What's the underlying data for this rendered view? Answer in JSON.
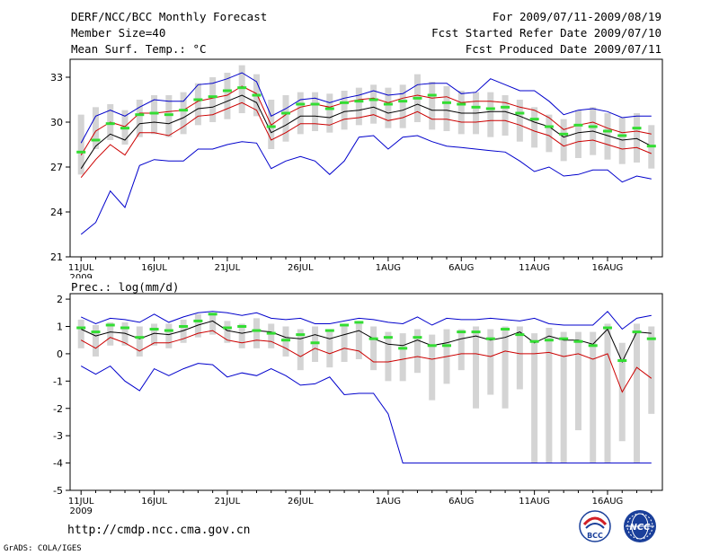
{
  "header": {
    "title": "DERF/NCC/BCC Monthly Forecast",
    "member_size": "Member Size=40",
    "variable_temp": "Mean Surf. Temp.: °C",
    "forecast_period": "For 2009/07/11-2009/08/19",
    "refer_date": "Fcst Started Refer Date 2009/07/10",
    "produced_date": "Fcst Produced Date 2009/07/11"
  },
  "footer": {
    "url": "http://cmdp.ncc.cma.gov.cn",
    "grads": "GrADS: COLA/IGES",
    "logo_bcc": "BCC",
    "logo_ncc": "NCC"
  },
  "colors": {
    "max_min": "#0000cc",
    "mean": "#000000",
    "lower": "#cc0000",
    "box": "#d4d4d4",
    "median": "#33dd33"
  },
  "chart_data": [
    {
      "type": "line",
      "title": "Mean Surf. Temp.: °C",
      "x_tick_labels": [
        "11JUL",
        "16JUL",
        "21JUL",
        "26JUL",
        "1AUG",
        "6AUG",
        "11AUG",
        "16AUG"
      ],
      "x_tick_days": [
        1,
        6,
        11,
        16,
        22,
        27,
        32,
        37
      ],
      "year_label": "2009",
      "y_ticks": [
        21,
        24,
        27,
        30,
        33
      ],
      "ylim": [
        21,
        34.2
      ],
      "days": 40,
      "series": [
        {
          "name": "max",
          "values": [
            28.6,
            30.4,
            30.8,
            30.4,
            31.0,
            31.5,
            31.4,
            31.4,
            32.5,
            32.6,
            32.9,
            33.3,
            32.7,
            30.4,
            30.9,
            31.5,
            31.6,
            31.3,
            31.6,
            31.8,
            32.1,
            31.8,
            31.9,
            32.5,
            32.6,
            32.6,
            31.9,
            32.0,
            32.9,
            32.5,
            32.1,
            32.1,
            31.4,
            30.5,
            30.8,
            30.9,
            30.7,
            30.3,
            30.4,
            30.4
          ]
        },
        {
          "name": "upper",
          "values": [
            27.8,
            29.4,
            30.0,
            29.7,
            30.6,
            30.6,
            30.7,
            30.8,
            31.4,
            31.6,
            31.8,
            32.4,
            31.9,
            29.8,
            30.5,
            31.0,
            31.2,
            31.0,
            31.3,
            31.5,
            31.6,
            31.3,
            31.6,
            31.8,
            31.6,
            31.7,
            31.3,
            31.4,
            31.4,
            31.3,
            31.0,
            30.8,
            30.3,
            29.5,
            29.8,
            30.0,
            29.6,
            29.3,
            29.4,
            29.2
          ]
        },
        {
          "name": "mean",
          "values": [
            26.9,
            28.4,
            29.2,
            28.8,
            29.9,
            30.0,
            29.9,
            30.3,
            30.9,
            31.0,
            31.4,
            31.8,
            31.3,
            29.3,
            29.8,
            30.4,
            30.4,
            30.3,
            30.7,
            30.8,
            31.0,
            30.6,
            30.8,
            31.2,
            30.8,
            30.8,
            30.6,
            30.6,
            30.7,
            30.7,
            30.4,
            30.0,
            29.7,
            29.0,
            29.3,
            29.4,
            29.1,
            28.8,
            28.9,
            28.4
          ]
        },
        {
          "name": "lower",
          "values": [
            26.3,
            27.5,
            28.5,
            27.8,
            29.3,
            29.3,
            29.1,
            29.7,
            30.4,
            30.5,
            30.9,
            31.3,
            30.8,
            28.8,
            29.3,
            29.9,
            29.9,
            29.8,
            30.2,
            30.3,
            30.5,
            30.1,
            30.3,
            30.7,
            30.2,
            30.2,
            30.0,
            30.0,
            30.1,
            30.1,
            29.8,
            29.4,
            29.1,
            28.4,
            28.7,
            28.8,
            28.5,
            28.2,
            28.3,
            27.9
          ]
        },
        {
          "name": "min",
          "values": [
            22.5,
            23.3,
            25.4,
            24.3,
            27.1,
            27.5,
            27.4,
            27.4,
            28.2,
            28.2,
            28.5,
            28.7,
            28.6,
            26.9,
            27.4,
            27.7,
            27.4,
            26.5,
            27.4,
            29.0,
            29.1,
            28.2,
            29.0,
            29.1,
            28.7,
            28.4,
            28.3,
            28.2,
            28.1,
            28.0,
            27.4,
            26.7,
            27.0,
            26.4,
            26.5,
            26.8,
            26.8,
            26.0,
            26.4,
            26.2
          ]
        }
      ],
      "boxes": [
        [
          26.5,
          30.5
        ],
        [
          28.2,
          31.0
        ],
        [
          28.8,
          31.2
        ],
        [
          28.5,
          30.8
        ],
        [
          29.0,
          31.5
        ],
        [
          29.2,
          31.8
        ],
        [
          29.0,
          31.8
        ],
        [
          29.2,
          32.0
        ],
        [
          29.8,
          32.6
        ],
        [
          30.0,
          33.0
        ],
        [
          30.2,
          33.3
        ],
        [
          30.6,
          33.8
        ],
        [
          30.4,
          33.2
        ],
        [
          28.2,
          31.5
        ],
        [
          28.7,
          31.8
        ],
        [
          29.2,
          32.0
        ],
        [
          29.4,
          32.0
        ],
        [
          29.3,
          31.9
        ],
        [
          29.5,
          32.1
        ],
        [
          29.8,
          32.3
        ],
        [
          29.9,
          32.5
        ],
        [
          29.6,
          32.3
        ],
        [
          29.6,
          32.5
        ],
        [
          30.0,
          33.2
        ],
        [
          29.5,
          32.7
        ],
        [
          29.4,
          32.4
        ],
        [
          29.2,
          32.1
        ],
        [
          29.2,
          32.0
        ],
        [
          29.0,
          32.0
        ],
        [
          29.1,
          31.8
        ],
        [
          28.7,
          31.5
        ],
        [
          28.3,
          31.0
        ],
        [
          28.0,
          30.5
        ],
        [
          27.4,
          30.2
        ],
        [
          27.6,
          30.8
        ],
        [
          27.8,
          31.0
        ],
        [
          27.5,
          30.6
        ],
        [
          27.2,
          30.3
        ],
        [
          27.3,
          30.6
        ],
        [
          26.9,
          29.8
        ]
      ],
      "medians": [
        28.0,
        28.8,
        29.9,
        29.6,
        30.5,
        30.6,
        30.5,
        30.8,
        31.5,
        31.7,
        32.1,
        32.3,
        31.8,
        29.7,
        30.6,
        31.2,
        31.2,
        30.9,
        31.3,
        31.4,
        31.5,
        31.2,
        31.4,
        31.6,
        31.8,
        31.3,
        31.2,
        31.0,
        30.9,
        31.0,
        30.6,
        30.2,
        29.7,
        29.2,
        29.8,
        29.7,
        29.4,
        29.1,
        29.6,
        28.4
      ]
    },
    {
      "type": "line",
      "title": "Prec.: log(mm/d)",
      "x_tick_labels": [
        "11JUL",
        "16JUL",
        "21JUL",
        "26JUL",
        "1AUG",
        "6AUG",
        "11AUG",
        "16AUG"
      ],
      "x_tick_days": [
        1,
        6,
        11,
        16,
        22,
        27,
        32,
        37
      ],
      "year_label": "2009",
      "y_ticks": [
        -5,
        -4,
        -3,
        -2,
        -1,
        0,
        1,
        2
      ],
      "ylim": [
        -5,
        2.2
      ],
      "days": 40,
      "series": [
        {
          "name": "max",
          "values": [
            1.35,
            1.1,
            1.3,
            1.25,
            1.15,
            1.45,
            1.15,
            1.35,
            1.5,
            1.55,
            1.5,
            1.4,
            1.5,
            1.3,
            1.25,
            1.3,
            1.1,
            1.1,
            1.2,
            1.3,
            1.25,
            1.15,
            1.1,
            1.35,
            1.05,
            1.3,
            1.25,
            1.25,
            1.3,
            1.25,
            1.2,
            1.3,
            1.1,
            1.05,
            1.05,
            1.05,
            1.55,
            0.9,
            1.3,
            1.4
          ]
        },
        {
          "name": "mean",
          "values": [
            0.9,
            0.65,
            0.8,
            0.75,
            0.55,
            0.75,
            0.7,
            0.85,
            1.05,
            1.2,
            0.85,
            0.75,
            0.85,
            0.8,
            0.6,
            0.55,
            0.7,
            0.55,
            0.7,
            0.85,
            0.55,
            0.35,
            0.3,
            0.5,
            0.3,
            0.4,
            0.55,
            0.65,
            0.5,
            0.6,
            0.8,
            0.4,
            0.65,
            0.5,
            0.5,
            0.35,
            0.9,
            -0.3,
            0.8,
            0.75
          ]
        },
        {
          "name": "lower",
          "values": [
            0.5,
            0.2,
            0.6,
            0.4,
            0.1,
            0.4,
            0.4,
            0.55,
            0.75,
            0.85,
            0.5,
            0.4,
            0.5,
            0.45,
            0.2,
            -0.1,
            0.2,
            0.0,
            0.2,
            0.1,
            -0.3,
            -0.3,
            -0.2,
            -0.1,
            -0.2,
            -0.1,
            0.0,
            0.0,
            -0.1,
            0.1,
            0.0,
            0.0,
            0.05,
            -0.1,
            0.0,
            -0.2,
            0.0,
            -1.4,
            -0.5,
            -0.9
          ]
        },
        {
          "name": "min",
          "values": [
            -0.45,
            -0.75,
            -0.45,
            -1.0,
            -1.35,
            -0.55,
            -0.8,
            -0.55,
            -0.35,
            -0.4,
            -0.85,
            -0.7,
            -0.8,
            -0.55,
            -0.8,
            -1.15,
            -1.1,
            -0.85,
            -1.5,
            -1.45,
            -1.45,
            -2.2,
            -4.0,
            -4.0,
            -4.0,
            -4.0,
            -4.0,
            -4.0,
            -4.0,
            -4.0,
            -4.0,
            -4.0,
            -4.0,
            -4.0,
            -4.0,
            -4.0,
            -4.0,
            -4.0,
            -4.0,
            -4.0
          ]
        }
      ],
      "boxes": [
        [
          0.2,
          1.25
        ],
        [
          -0.1,
          1.05
        ],
        [
          0.3,
          1.15
        ],
        [
          0.3,
          1.15
        ],
        [
          -0.1,
          1.0
        ],
        [
          0.3,
          1.1
        ],
        [
          0.2,
          1.1
        ],
        [
          0.4,
          1.25
        ],
        [
          0.6,
          1.45
        ],
        [
          0.7,
          1.5
        ],
        [
          0.4,
          1.2
        ],
        [
          0.2,
          1.1
        ],
        [
          0.2,
          1.3
        ],
        [
          0.2,
          1.1
        ],
        [
          -0.1,
          1.0
        ],
        [
          -0.6,
          0.9
        ],
        [
          -0.3,
          1.0
        ],
        [
          -0.5,
          0.9
        ],
        [
          -0.3,
          1.0
        ],
        [
          -0.2,
          1.1
        ],
        [
          -0.6,
          1.0
        ],
        [
          -1.0,
          0.8
        ],
        [
          -1.0,
          0.75
        ],
        [
          -0.7,
          0.9
        ],
        [
          -1.7,
          0.7
        ],
        [
          -1.1,
          0.9
        ],
        [
          -0.6,
          0.9
        ],
        [
          -2.0,
          1.0
        ],
        [
          -1.5,
          0.9
        ],
        [
          -2.0,
          1.0
        ],
        [
          -1.3,
          1.0
        ],
        [
          -4.0,
          0.75
        ],
        [
          -4.0,
          0.95
        ],
        [
          -4.0,
          0.8
        ],
        [
          -2.8,
          0.8
        ],
        [
          -4.0,
          0.8
        ],
        [
          -4.0,
          1.1
        ],
        [
          -3.2,
          0.4
        ],
        [
          -4.0,
          1.1
        ],
        [
          -2.2,
          1.0
        ]
      ],
      "medians": [
        0.95,
        0.8,
        1.05,
        0.95,
        0.6,
        0.9,
        0.85,
        1.0,
        1.2,
        1.45,
        0.95,
        1.0,
        0.85,
        0.75,
        0.5,
        0.7,
        0.4,
        0.85,
        1.05,
        1.15,
        0.55,
        0.6,
        0.2,
        0.6,
        0.3,
        0.3,
        0.8,
        0.8,
        0.55,
        0.9,
        0.7,
        0.45,
        0.5,
        0.55,
        0.45,
        0.3,
        0.95,
        -0.25,
        0.8,
        0.55
      ]
    }
  ]
}
